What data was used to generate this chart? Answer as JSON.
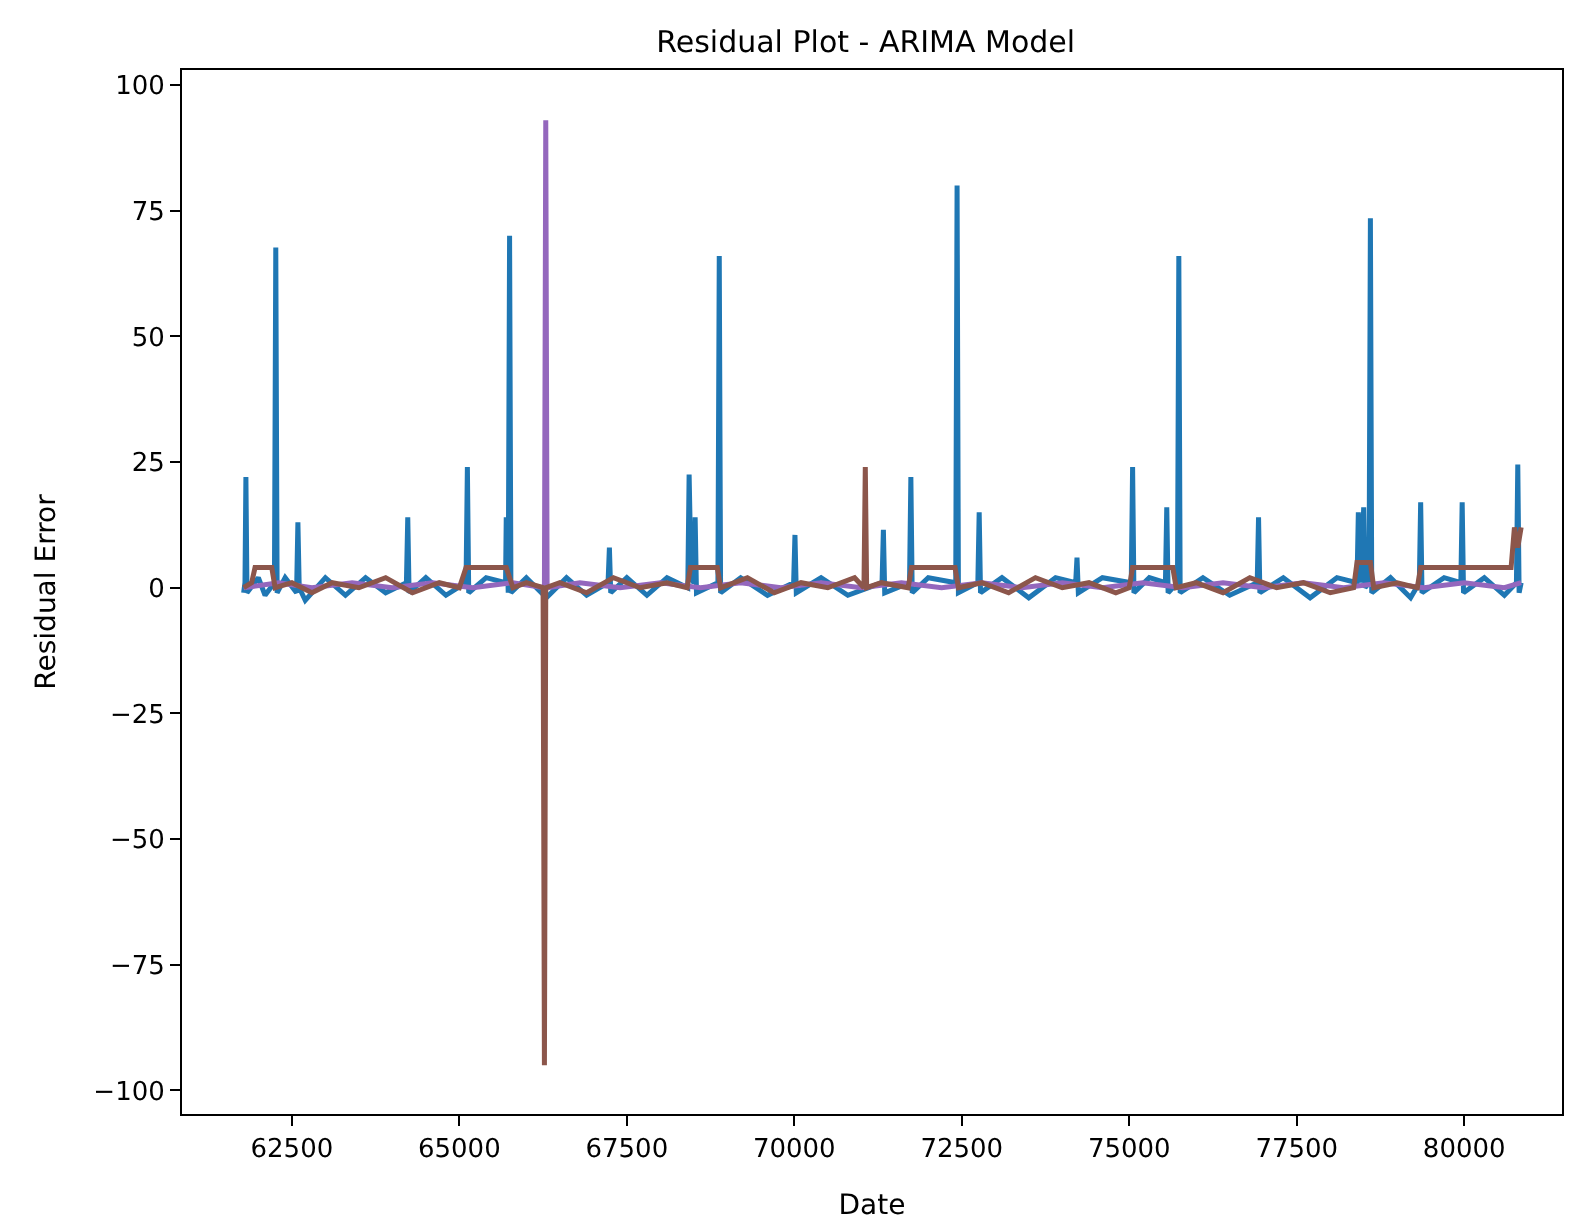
{
  "chart_data": {
    "type": "line",
    "title": "Residual Plot - ARIMA Model",
    "xlabel": "Date",
    "ylabel": "Residual Error",
    "xlim": [
      60860,
      81460
    ],
    "ylim": [
      -104.7,
      103
    ],
    "xticks": [
      62500,
      65000,
      67500,
      70000,
      72500,
      75000,
      77500,
      80000
    ],
    "yticks": [
      {
        "value": -100,
        "label": "−100"
      },
      {
        "value": -75,
        "label": "−75"
      },
      {
        "value": -50,
        "label": "−50"
      },
      {
        "value": -25,
        "label": "−25"
      },
      0,
      25,
      50,
      75,
      100
    ],
    "marker": "none",
    "line_style": "solid",
    "series": [
      {
        "color": "#1f77b4",
        "x": [
          61780,
          61800,
          61814,
          61830,
          62000,
          62100,
          62240,
          62260,
          62280,
          62400,
          62570,
          62590,
          62610,
          62700,
          63000,
          63300,
          63600,
          63900,
          64210,
          64230,
          64250,
          64500,
          64800,
          65100,
          65120,
          65140,
          65400,
          65690,
          65700,
          65730,
          65750,
          65770,
          66000,
          66300,
          66600,
          66900,
          67220,
          67240,
          67260,
          67500,
          67800,
          68100,
          68410,
          68430,
          68460,
          68500,
          68520,
          68540,
          68860,
          68880,
          68900,
          69200,
          69600,
          69990,
          70010,
          70030,
          70400,
          70800,
          71310,
          71330,
          71350,
          71720,
          71740,
          71760,
          72000,
          72410,
          72430,
          72450,
          72740,
          72760,
          72780,
          73100,
          73500,
          73900,
          74200,
          74220,
          74240,
          74600,
          75030,
          75050,
          75070,
          75300,
          75540,
          75560,
          75580,
          75720,
          75740,
          75760,
          76100,
          76500,
          76910,
          76930,
          76950,
          77300,
          77700,
          78100,
          78400,
          78420,
          78460,
          78500,
          78520,
          78580,
          78600,
          78620,
          78900,
          79200,
          79330,
          79350,
          79370,
          79700,
          79950,
          79970,
          79990,
          80300,
          80600,
          80780,
          80800,
          80820,
          80850
        ],
        "values": [
          -1,
          1,
          22,
          -1,
          2,
          -1.5,
          1,
          67.7,
          -1,
          2,
          -1,
          13,
          0,
          -2.5,
          2,
          -1.5,
          2,
          -1,
          1,
          14,
          -1,
          2,
          -1.5,
          1,
          24,
          -1,
          2,
          1,
          14,
          -1,
          70,
          -1,
          2,
          -2,
          2,
          -1.5,
          1,
          8,
          -1,
          2,
          -1.5,
          2,
          0,
          22.5,
          2,
          1,
          14,
          -1,
          1,
          66,
          -1,
          2,
          -1.5,
          1,
          10.5,
          -1,
          2,
          -1.5,
          1,
          11.5,
          -1,
          1,
          22,
          -1,
          2,
          1,
          80,
          -1,
          1,
          15,
          -1,
          2,
          -2,
          2,
          1,
          6,
          -1,
          2,
          1,
          24,
          -1,
          2,
          1,
          16,
          -1,
          1,
          66,
          -1,
          2,
          -1.5,
          1,
          14,
          -1,
          2,
          -2,
          2,
          1,
          15,
          1,
          16,
          0,
          1,
          73.5,
          -1,
          2,
          -2,
          1,
          17,
          -1,
          2,
          1,
          17,
          -1,
          2,
          -1.5,
          1,
          24.5,
          -1,
          1
        ]
      },
      {
        "color": "#9467bd",
        "x": [
          61780,
          62300,
          62800,
          63400,
          64000,
          64600,
          65200,
          65800,
          66270,
          66290,
          66310,
          66800,
          67400,
          68000,
          68600,
          69200,
          69800,
          70400,
          71000,
          71600,
          72200,
          72800,
          73400,
          74000,
          74600,
          75200,
          75800,
          76400,
          77000,
          77600,
          78200,
          78800,
          79400,
          80000,
          80600,
          80850
        ],
        "values": [
          0,
          1,
          0,
          1,
          0,
          1,
          0,
          1,
          0,
          93,
          0,
          1,
          0,
          1,
          0,
          1,
          0,
          1,
          0,
          1,
          0,
          1,
          0,
          1,
          0,
          1,
          0,
          1,
          0,
          1,
          0,
          1,
          0,
          1,
          0,
          1
        ]
      },
      {
        "color": "#8c564b",
        "x": [
          61780,
          61900,
          61950,
          62200,
          62250,
          62500,
          62800,
          63100,
          63500,
          63900,
          64300,
          64700,
          65000,
          65100,
          65700,
          65800,
          66000,
          66250,
          66270,
          66290,
          66500,
          66900,
          67300,
          67700,
          68100,
          68400,
          68450,
          68850,
          68900,
          69300,
          69700,
          70100,
          70500,
          70900,
          71040,
          71060,
          71080,
          71300,
          71700,
          71750,
          72400,
          72450,
          72800,
          73200,
          73600,
          74000,
          74400,
          74800,
          75000,
          75050,
          75650,
          75700,
          76000,
          76400,
          76800,
          77200,
          77600,
          78000,
          78350,
          78400,
          78600,
          78650,
          79000,
          79300,
          79350,
          79700,
          80100,
          80500,
          80700,
          80750,
          80800,
          80850
        ],
        "values": [
          0,
          1,
          4,
          4,
          0,
          1,
          -1,
          1,
          0,
          2,
          -1,
          1,
          0,
          4,
          4,
          0,
          1,
          0,
          -95,
          0,
          1,
          -1,
          2,
          0,
          1,
          0,
          4,
          4,
          0,
          2,
          -1,
          1,
          0,
          2,
          0,
          24,
          0,
          1,
          0,
          4,
          4,
          0,
          1,
          -1,
          2,
          0,
          1,
          -1,
          0,
          4,
          4,
          0,
          1,
          -1,
          2,
          0,
          1,
          -1,
          0,
          5,
          5,
          0,
          1,
          0,
          4,
          4,
          4,
          4,
          4,
          12,
          8,
          12
        ]
      }
    ]
  }
}
